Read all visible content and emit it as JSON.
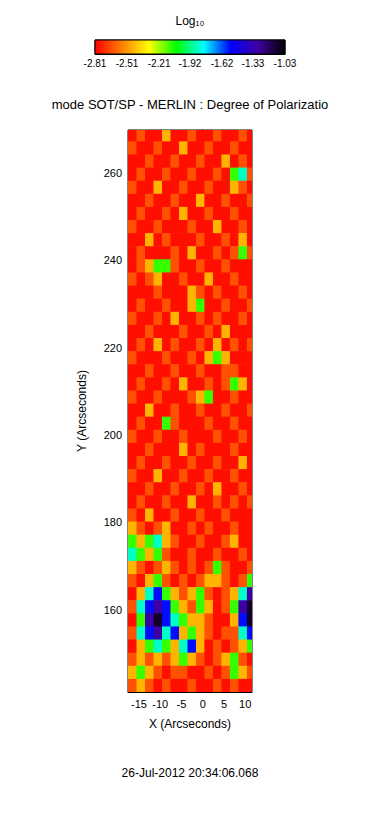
{
  "chart_data": {
    "type": "heatmap",
    "title": "mode SOT/SP - MERLIN : Degree of Polarizatio",
    "x_label": "X (Arcseconds)",
    "y_label": "Y (Arcseconds)",
    "annotation": "26-Jul-2012 20:34:06.068",
    "xlim": [
      -17.6,
      11.6
    ],
    "ylim": [
      141.2,
      269.8
    ],
    "xticks": [
      -15,
      -10,
      -5,
      0,
      5,
      10
    ],
    "yticks": [
      160,
      180,
      200,
      220,
      240,
      260
    ],
    "grid": false,
    "colorbar": {
      "label": "Log₁₀",
      "range": [
        -2.81,
        -1.03
      ],
      "ticks": [
        -2.81,
        -2.51,
        -2.21,
        -1.92,
        -1.62,
        -1.33,
        -1.03
      ]
    },
    "x": [
      -16.6,
      -14.6,
      -12.6,
      -10.6,
      -8.6,
      -6.6,
      -4.6,
      -2.6,
      -0.6,
      1.4,
      3.4,
      5.4,
      7.4,
      9.4,
      11.4
    ],
    "y": [
      268.7,
      265.7,
      262.7,
      259.7,
      256.7,
      253.7,
      250.7,
      247.7,
      244.7,
      241.7,
      238.7,
      235.7,
      232.7,
      229.7,
      226.7,
      223.7,
      220.7,
      217.7,
      214.7,
      211.7,
      208.7,
      205.7,
      202.7,
      199.7,
      196.7,
      193.7,
      190.7,
      187.7,
      184.7,
      181.7,
      178.7,
      175.7,
      172.7,
      169.7,
      166.7,
      163.7,
      160.7,
      157.7,
      154.7,
      151.7,
      148.7,
      145.7,
      142.7
    ],
    "cells": [
      [
        -2.78,
        -2.65,
        -2.78,
        -2.78,
        -2.45,
        -2.78,
        -2.78,
        -2.65,
        -2.78,
        -2.78,
        -2.65,
        -2.78,
        -2.78,
        -2.65,
        -2.78
      ],
      [
        -2.65,
        -2.78,
        -2.78,
        -2.65,
        -2.78,
        -2.78,
        -2.45,
        -2.78,
        -2.78,
        -2.65,
        -2.78,
        -2.78,
        -2.65,
        -2.78,
        -2.78
      ],
      [
        -2.78,
        -2.78,
        -2.65,
        -2.78,
        -2.78,
        -2.65,
        -2.78,
        -2.78,
        -2.65,
        -2.78,
        -2.78,
        -2.45,
        -2.78,
        -2.65,
        -2.78
      ],
      [
        -2.78,
        -2.65,
        -2.78,
        -2.78,
        -2.65,
        -2.78,
        -2.78,
        -2.65,
        -2.78,
        -2.78,
        -2.65,
        -2.78,
        -2.1,
        -1.85,
        -2.65
      ],
      [
        -2.65,
        -2.78,
        -2.78,
        -2.45,
        -2.78,
        -2.78,
        -2.65,
        -2.78,
        -2.78,
        -2.65,
        -2.78,
        -2.78,
        -2.45,
        -2.65,
        -2.78
      ],
      [
        -2.78,
        -2.78,
        -2.65,
        -2.78,
        -2.78,
        -2.65,
        -2.78,
        -2.78,
        -2.45,
        -2.78,
        -2.78,
        -2.65,
        -2.78,
        -2.78,
        -2.65
      ],
      [
        -2.78,
        -2.65,
        -2.78,
        -2.78,
        -2.65,
        -2.78,
        -2.45,
        -2.78,
        -2.78,
        -2.65,
        -2.78,
        -2.78,
        -2.65,
        -2.78,
        -2.78
      ],
      [
        -2.65,
        -2.78,
        -2.78,
        -2.65,
        -2.78,
        -2.78,
        -2.78,
        -2.65,
        -2.78,
        -2.78,
        -2.45,
        -2.78,
        -2.78,
        -2.65,
        -2.78
      ],
      [
        -2.78,
        -2.78,
        -2.45,
        -2.78,
        -2.65,
        -2.78,
        -2.78,
        -2.78,
        -2.65,
        -2.78,
        -2.78,
        -2.65,
        -2.78,
        -2.45,
        -2.78
      ],
      [
        -2.78,
        -2.65,
        -2.78,
        -2.78,
        -2.78,
        -2.65,
        -2.78,
        -2.45,
        -2.78,
        -2.78,
        -2.65,
        -2.78,
        -2.65,
        -2.1,
        -2.65
      ],
      [
        -2.78,
        -2.65,
        -2.45,
        -2.1,
        -2.1,
        -2.65,
        -2.78,
        -2.78,
        -2.65,
        -2.78,
        -2.78,
        -2.65,
        -2.78,
        -2.78,
        -2.78
      ],
      [
        -2.65,
        -2.78,
        -2.65,
        -2.45,
        -2.78,
        -2.78,
        -2.65,
        -2.78,
        -2.78,
        -2.45,
        -2.78,
        -2.78,
        -2.65,
        -2.78,
        -2.78
      ],
      [
        -2.78,
        -2.78,
        -2.78,
        -2.65,
        -2.78,
        -2.78,
        -2.78,
        -2.45,
        -2.65,
        -2.78,
        -2.65,
        -2.78,
        -2.78,
        -2.65,
        -2.78
      ],
      [
        -2.78,
        -2.65,
        -2.78,
        -2.78,
        -2.65,
        -2.78,
        -2.78,
        -2.45,
        -2.1,
        -2.78,
        -2.78,
        -2.65,
        -2.78,
        -2.78,
        -2.65
      ],
      [
        -2.65,
        -2.78,
        -2.78,
        -2.65,
        -2.78,
        -2.45,
        -2.78,
        -2.78,
        -2.65,
        -2.78,
        -2.65,
        -2.78,
        -2.78,
        -2.65,
        -2.78
      ],
      [
        -2.78,
        -2.78,
        -2.65,
        -2.78,
        -2.78,
        -2.78,
        -2.65,
        -2.78,
        -2.78,
        -2.65,
        -2.78,
        -2.45,
        -2.78,
        -2.78,
        -2.78
      ],
      [
        -2.78,
        -2.65,
        -2.78,
        -2.45,
        -2.78,
        -2.65,
        -2.78,
        -2.78,
        -2.65,
        -2.78,
        -2.45,
        -2.78,
        -2.65,
        -2.78,
        -2.65
      ],
      [
        -2.65,
        -2.78,
        -2.78,
        -2.78,
        -2.65,
        -2.78,
        -2.78,
        -2.65,
        -2.78,
        -2.45,
        -2.1,
        -2.45,
        -2.78,
        -2.78,
        -2.78
      ],
      [
        -2.78,
        -2.78,
        -2.65,
        -2.78,
        -2.78,
        -2.65,
        -2.78,
        -2.78,
        -2.65,
        -2.78,
        -2.78,
        -2.65,
        -2.65,
        -2.78,
        -2.78
      ],
      [
        -2.78,
        -2.65,
        -2.78,
        -2.78,
        -2.65,
        -2.78,
        -2.45,
        -2.78,
        -2.78,
        -2.65,
        -2.78,
        -2.65,
        -2.1,
        -2.45,
        -2.78
      ],
      [
        -2.65,
        -2.78,
        -2.78,
        -2.65,
        -2.78,
        -2.78,
        -2.78,
        -2.65,
        -2.45,
        -2.1,
        -2.78,
        -2.78,
        -2.65,
        -2.78,
        -2.78
      ],
      [
        -2.78,
        -2.78,
        -2.45,
        -2.78,
        -2.78,
        -2.65,
        -2.78,
        -2.78,
        -2.65,
        -2.78,
        -2.78,
        -2.65,
        -2.78,
        -2.78,
        -2.65
      ],
      [
        -2.78,
        -2.65,
        -2.78,
        -2.78,
        -2.1,
        -2.65,
        -2.78,
        -2.78,
        -2.78,
        -2.65,
        -2.78,
        -2.78,
        -2.65,
        -2.78,
        -2.78
      ],
      [
        -2.65,
        -2.78,
        -2.78,
        -2.65,
        -2.78,
        -2.78,
        -2.65,
        -2.78,
        -2.78,
        -2.78,
        -2.65,
        -2.78,
        -2.78,
        -2.65,
        -2.78
      ],
      [
        -2.78,
        -2.78,
        -2.65,
        -2.78,
        -2.78,
        -2.78,
        -2.45,
        -2.78,
        -2.65,
        -2.78,
        -2.78,
        -2.78,
        -2.65,
        -2.78,
        -2.78
      ],
      [
        -2.78,
        -2.65,
        -2.78,
        -2.78,
        -2.65,
        -2.78,
        -2.78,
        -2.65,
        -2.78,
        -2.78,
        -2.65,
        -2.78,
        -2.78,
        -2.45,
        -2.78
      ],
      [
        -2.65,
        -2.78,
        -2.78,
        -2.45,
        -2.78,
        -2.78,
        -2.65,
        -2.78,
        -2.78,
        -2.65,
        -2.78,
        -2.78,
        -2.65,
        -2.78,
        -2.78
      ],
      [
        -2.78,
        -2.78,
        -2.65,
        -2.78,
        -2.78,
        -2.65,
        -2.78,
        -2.78,
        -2.65,
        -2.78,
        -2.45,
        -2.78,
        -2.78,
        -2.65,
        -2.78
      ],
      [
        -2.78,
        -2.65,
        -2.78,
        -2.78,
        -2.65,
        -2.78,
        -2.78,
        -2.45,
        -2.78,
        -2.78,
        -2.65,
        -2.78,
        -2.65,
        -2.78,
        -2.65
      ],
      [
        -2.65,
        -2.78,
        -2.45,
        -2.78,
        -2.78,
        -2.65,
        -2.78,
        -2.78,
        -2.65,
        -2.78,
        -2.78,
        -2.65,
        -2.78,
        -2.78,
        -2.78
      ],
      [
        -2.45,
        -2.65,
        -2.78,
        -2.65,
        -2.45,
        -2.78,
        -2.78,
        -2.65,
        -2.78,
        -2.65,
        -2.78,
        -2.78,
        -2.65,
        -2.78,
        -2.78
      ],
      [
        -2.1,
        -2.45,
        -2.1,
        -1.85,
        -2.45,
        -2.65,
        -2.78,
        -2.78,
        -2.65,
        -2.78,
        -2.78,
        -2.65,
        -2.45,
        -2.78,
        -2.78
      ],
      [
        -1.85,
        -2.1,
        -2.45,
        -2.1,
        -2.65,
        -2.78,
        -2.78,
        -2.65,
        -2.78,
        -2.78,
        -2.65,
        -2.78,
        -2.78,
        -2.65,
        -2.78
      ],
      [
        -2.45,
        -2.65,
        -2.78,
        -2.65,
        -2.45,
        -2.65,
        -2.78,
        -2.65,
        -2.78,
        -2.65,
        -2.1,
        -2.65,
        -2.78,
        -2.78,
        -2.65
      ],
      [
        -2.65,
        -2.78,
        -2.45,
        -2.1,
        -2.65,
        -2.78,
        -2.65,
        -2.78,
        -2.65,
        -2.45,
        -2.45,
        -2.65,
        -2.78,
        -2.65,
        -2.1
      ],
      [
        -2.78,
        -2.45,
        -1.85,
        -1.55,
        -2.1,
        -2.45,
        -2.65,
        -2.45,
        -2.1,
        -2.65,
        -2.78,
        -2.65,
        -2.45,
        -1.85,
        -1.3
      ],
      [
        -2.65,
        -1.85,
        -1.55,
        -1.3,
        -1.55,
        -2.1,
        -2.45,
        -2.65,
        -2.1,
        -2.45,
        -2.78,
        -2.65,
        -2.1,
        -1.3,
        -1.1
      ],
      [
        -2.78,
        -2.1,
        -1.3,
        -1.1,
        -1.55,
        -1.85,
        -2.1,
        -2.45,
        -2.45,
        -2.65,
        -2.78,
        -2.78,
        -2.45,
        -1.55,
        -1.1
      ],
      [
        -2.65,
        -1.85,
        -1.55,
        -1.3,
        -1.85,
        -1.55,
        -2.45,
        -2.1,
        -2.45,
        -2.65,
        -2.78,
        -2.65,
        -2.65,
        -1.85,
        -1.55
      ],
      [
        -2.78,
        -2.45,
        -2.1,
        -1.85,
        -2.1,
        -2.45,
        -1.85,
        -1.55,
        -2.45,
        -2.78,
        -2.65,
        -2.78,
        -2.65,
        -2.45,
        -2.1
      ],
      [
        -2.65,
        -2.45,
        -2.65,
        -2.45,
        -2.65,
        -2.45,
        -2.1,
        -2.45,
        -2.65,
        -2.78,
        -2.65,
        -2.45,
        -2.1,
        -2.65,
        -2.78
      ],
      [
        -2.45,
        -2.1,
        -2.45,
        -2.65,
        -2.78,
        -2.65,
        -2.65,
        -2.78,
        -2.78,
        -2.65,
        -2.78,
        -2.65,
        -2.1,
        -2.45,
        -2.65
      ],
      [
        -2.65,
        -2.45,
        -2.65,
        -2.78,
        -2.65,
        -2.78,
        -2.78,
        -2.65,
        -2.78,
        -2.78,
        -2.65,
        -2.78,
        -2.65,
        -2.78,
        -2.78
      ]
    ]
  }
}
